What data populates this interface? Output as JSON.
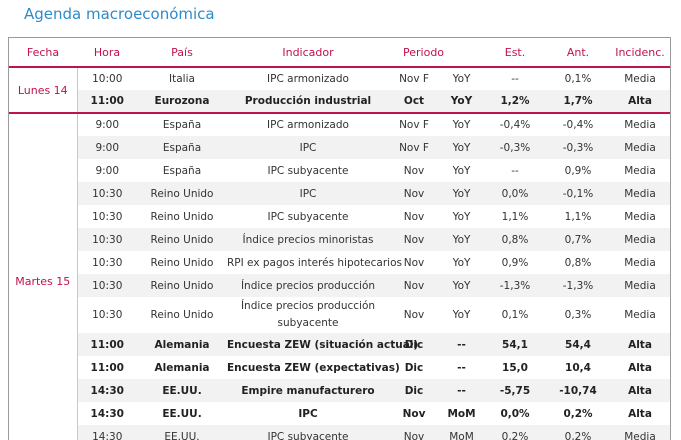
{
  "title": "Agenda macroeconómica",
  "columns": {
    "fecha": "Fecha",
    "hora": "Hora",
    "pais": "País",
    "indicador": "Indicador",
    "periodo": "Periodo",
    "est": "Est.",
    "ant": "Ant.",
    "incid": "Incidenc."
  },
  "days": [
    {
      "label": "Lunes 14",
      "rows": [
        {
          "hora": "10:00",
          "pais": "Italia",
          "indicador": "IPC armonizado",
          "periodo": "Nov F",
          "tipo": "YoY",
          "est": "--",
          "ant": "0,1%",
          "incid": "Media",
          "bold": false
        },
        {
          "hora": "11:00",
          "pais": "Eurozona",
          "indicador": "Producción industrial",
          "periodo": "Oct",
          "tipo": "YoY",
          "est": "1,2%",
          "ant": "1,7%",
          "incid": "Alta",
          "bold": true
        }
      ]
    },
    {
      "label": "Martes 15",
      "rows": [
        {
          "hora": "9:00",
          "pais": "España",
          "indicador": "IPC armonizado",
          "periodo": "Nov F",
          "tipo": "YoY",
          "est": "-0,4%",
          "ant": "-0,4%",
          "incid": "Media",
          "bold": false
        },
        {
          "hora": "9:00",
          "pais": "España",
          "indicador": "IPC",
          "periodo": "Nov F",
          "tipo": "YoY",
          "est": "-0,3%",
          "ant": "-0,3%",
          "incid": "Media",
          "bold": false
        },
        {
          "hora": "9:00",
          "pais": "España",
          "indicador": "IPC subyacente",
          "periodo": "Nov",
          "tipo": "YoY",
          "est": "--",
          "ant": "0,9%",
          "incid": "Media",
          "bold": false
        },
        {
          "hora": "10:30",
          "pais": "Reino Unido",
          "indicador": "IPC",
          "periodo": "Nov",
          "tipo": "YoY",
          "est": "0,0%",
          "ant": "-0,1%",
          "incid": "Media",
          "bold": false
        },
        {
          "hora": "10:30",
          "pais": "Reino Unido",
          "indicador": "IPC subyacente",
          "periodo": "Nov",
          "tipo": "YoY",
          "est": "1,1%",
          "ant": "1,1%",
          "incid": "Media",
          "bold": false
        },
        {
          "hora": "10:30",
          "pais": "Reino Unido",
          "indicador": "Índice precios minoristas",
          "periodo": "Nov",
          "tipo": "YoY",
          "est": "0,8%",
          "ant": "0,7%",
          "incid": "Media",
          "bold": false
        },
        {
          "hora": "10:30",
          "pais": "Reino Unido",
          "indicador": "RPI ex pagos interés hipotecarios",
          "periodo": "Nov",
          "tipo": "YoY",
          "est": "0,9%",
          "ant": "0,8%",
          "incid": "Media",
          "bold": false
        },
        {
          "hora": "10:30",
          "pais": "Reino Unido",
          "indicador": "Índice precios producción",
          "periodo": "Nov",
          "tipo": "YoY",
          "est": "-1,3%",
          "ant": "-1,3%",
          "incid": "Media",
          "bold": false
        },
        {
          "hora": "10:30",
          "pais": "Reino Unido",
          "indicador": "Índice precios producción subyacente",
          "periodo": "Nov",
          "tipo": "YoY",
          "est": "0,1%",
          "ant": "0,3%",
          "incid": "Media",
          "bold": false
        },
        {
          "hora": "11:00",
          "pais": "Alemania",
          "indicador": "Encuesta ZEW (situación actual)",
          "periodo": "Dic",
          "tipo": "--",
          "est": "54,1",
          "ant": "54,4",
          "incid": "Alta",
          "bold": true
        },
        {
          "hora": "11:00",
          "pais": "Alemania",
          "indicador": "Encuesta ZEW (expectativas)",
          "periodo": "Dic",
          "tipo": "--",
          "est": "15,0",
          "ant": "10,4",
          "incid": "Alta",
          "bold": true
        },
        {
          "hora": "14:30",
          "pais": "EE.UU.",
          "indicador": "Empire manufacturero",
          "periodo": "Dic",
          "tipo": "--",
          "est": "-5,75",
          "ant": "-10,74",
          "incid": "Alta",
          "bold": true
        },
        {
          "hora": "14:30",
          "pais": "EE.UU.",
          "indicador": "IPC",
          "periodo": "Nov",
          "tipo": "MoM",
          "est": "0,0%",
          "ant": "0,2%",
          "incid": "Alta",
          "bold": true
        },
        {
          "hora": "14:30",
          "pais": "EE.UU.",
          "indicador": "IPC subyacente",
          "periodo": "Nov",
          "tipo": "MoM",
          "est": "0,2%",
          "ant": "0,2%",
          "incid": "Media",
          "bold": false
        }
      ]
    }
  ],
  "colors": {
    "accent": "#c0134a",
    "title": "#2e8bc9",
    "zebra": "#f2f2f2"
  }
}
